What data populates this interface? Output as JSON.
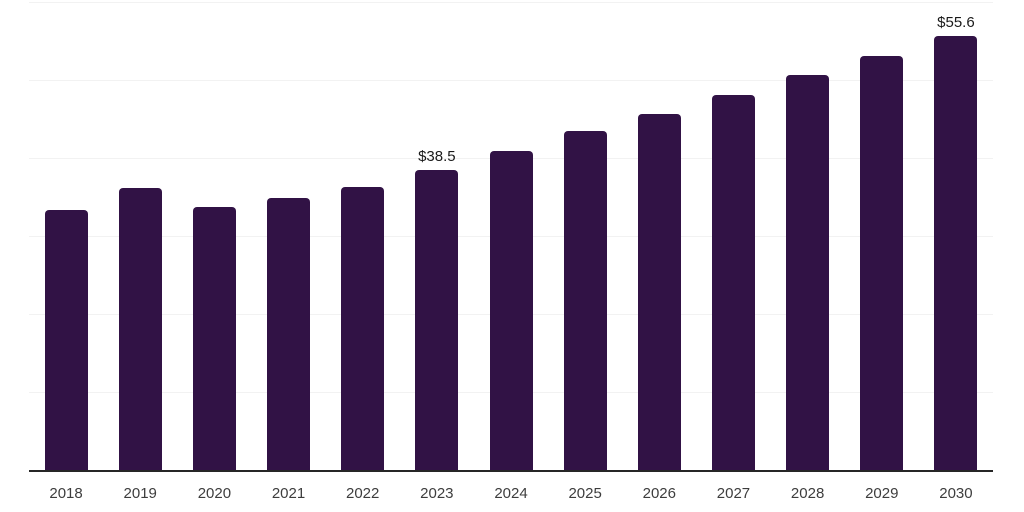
{
  "chart_data": {
    "type": "bar",
    "title": "",
    "xlabel": "",
    "ylabel": "",
    "categories": [
      "2018",
      "2019",
      "2020",
      "2021",
      "2022",
      "2023",
      "2024",
      "2025",
      "2026",
      "2027",
      "2028",
      "2029",
      "2030"
    ],
    "values": [
      33.3,
      36.1,
      33.7,
      34.9,
      36.3,
      38.5,
      40.9,
      43.4,
      45.6,
      48.1,
      50.7,
      53.1,
      55.6
    ],
    "data_labels": [
      "",
      "",
      "",
      "",
      "",
      "$38.5",
      "",
      "",
      "",
      "",
      "",
      "",
      "$55.6"
    ],
    "ylim": [
      0,
      60
    ],
    "gridline_step": 10,
    "grid": "horizontal",
    "legend": "none",
    "colors": {
      "bar": "#311245",
      "gridline": "#f2f2f2",
      "axis_line": "#262626",
      "tick_label": "#3d3d3d",
      "data_label": "#1a1a1a",
      "background": "#ffffff"
    }
  }
}
